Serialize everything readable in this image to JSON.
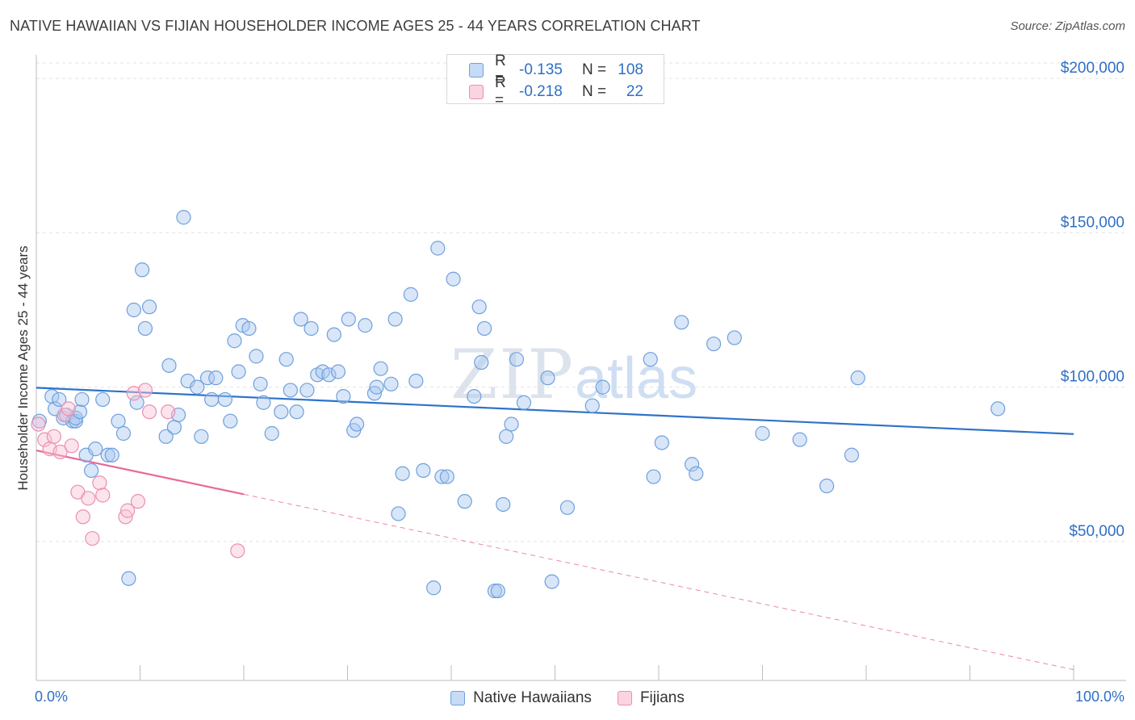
{
  "header": {
    "title": "NATIVE HAWAIIAN VS FIJIAN HOUSEHOLDER INCOME AGES 25 - 44 YEARS CORRELATION CHART",
    "source": "Source: ZipAtlas.com"
  },
  "legend_top": [
    {
      "r_label": "R =",
      "r_value": "-0.135",
      "n_label": "N =",
      "n_value": "108",
      "color": "#a8c8f0",
      "border": "#6fa0dc"
    },
    {
      "r_label": "R =",
      "r_value": "-0.218",
      "n_label": "N =",
      "n_value": "22",
      "color": "#f9c4d6",
      "border": "#ec8fb0"
    }
  ],
  "legend_bottom": [
    {
      "label": "Native Hawaiians",
      "color": "#a8c8f0",
      "border": "#6fa0dc"
    },
    {
      "label": "Fijians",
      "color": "#f9c4d6",
      "border": "#ec8fb0"
    }
  ],
  "watermark": {
    "zip": "ZIP",
    "atlas": "atlas"
  },
  "colors": {
    "blue": "#2e73c9",
    "pink": "#e8689a",
    "tick_label": "#2f6fc4"
  },
  "chart_data": {
    "type": "scatter",
    "title": "NATIVE HAWAIIAN VS FIJIAN HOUSEHOLDER INCOME AGES 25 - 44 YEARS CORRELATION CHART",
    "xlabel": "",
    "ylabel": "Householder Income Ages 25 - 44 years",
    "xlim": [
      0,
      100
    ],
    "ylim": [
      5000,
      205000
    ],
    "x_tick_labels": [
      "0.0%",
      "100.0%"
    ],
    "y_ticks": [
      50000,
      100000,
      150000,
      200000
    ],
    "y_tick_labels": [
      "$50,000",
      "$100,000",
      "$150,000",
      "$200,000"
    ],
    "grid": true,
    "series": [
      {
        "name": "Native Hawaiians",
        "points": [
          [
            0.3,
            89000
          ],
          [
            1.5,
            97000
          ],
          [
            1.8,
            93000
          ],
          [
            2.2,
            96000
          ],
          [
            2.6,
            90000
          ],
          [
            2.9,
            91000
          ],
          [
            3.5,
            89000
          ],
          [
            3.8,
            89000
          ],
          [
            3.8,
            90000
          ],
          [
            4.2,
            92000
          ],
          [
            4.4,
            96000
          ],
          [
            4.8,
            78000
          ],
          [
            5.3,
            73000
          ],
          [
            5.7,
            80000
          ],
          [
            6.4,
            96000
          ],
          [
            6.9,
            78000
          ],
          [
            7.3,
            78000
          ],
          [
            7.9,
            89000
          ],
          [
            8.4,
            85000
          ],
          [
            8.9,
            38000
          ],
          [
            9.4,
            125000
          ],
          [
            9.7,
            95000
          ],
          [
            10.2,
            138000
          ],
          [
            10.5,
            119000
          ],
          [
            10.9,
            126000
          ],
          [
            12.5,
            84000
          ],
          [
            12.8,
            107000
          ],
          [
            13.3,
            87000
          ],
          [
            13.7,
            91000
          ],
          [
            14.2,
            155000
          ],
          [
            14.6,
            102000
          ],
          [
            15.5,
            100000
          ],
          [
            15.9,
            84000
          ],
          [
            16.5,
            103000
          ],
          [
            16.9,
            96000
          ],
          [
            17.3,
            103000
          ],
          [
            18.2,
            96000
          ],
          [
            18.7,
            89000
          ],
          [
            19.1,
            115000
          ],
          [
            19.5,
            105000
          ],
          [
            19.9,
            120000
          ],
          [
            20.5,
            119000
          ],
          [
            21.2,
            110000
          ],
          [
            21.6,
            101000
          ],
          [
            21.9,
            95000
          ],
          [
            22.7,
            85000
          ],
          [
            23.6,
            92000
          ],
          [
            24.1,
            109000
          ],
          [
            24.5,
            99000
          ],
          [
            25.1,
            92000
          ],
          [
            25.5,
            122000
          ],
          [
            26.1,
            99000
          ],
          [
            26.5,
            119000
          ],
          [
            27.1,
            104000
          ],
          [
            27.6,
            105000
          ],
          [
            28.2,
            104000
          ],
          [
            28.7,
            117000
          ],
          [
            29.1,
            105000
          ],
          [
            29.6,
            97000
          ],
          [
            30.1,
            122000
          ],
          [
            30.6,
            86000
          ],
          [
            30.9,
            88000
          ],
          [
            31.7,
            120000
          ],
          [
            32.6,
            98000
          ],
          [
            32.8,
            100000
          ],
          [
            33.2,
            106000
          ],
          [
            34.2,
            101000
          ],
          [
            34.6,
            122000
          ],
          [
            34.9,
            59000
          ],
          [
            35.3,
            72000
          ],
          [
            36.1,
            130000
          ],
          [
            36.6,
            102000
          ],
          [
            37.3,
            73000
          ],
          [
            38.3,
            35000
          ],
          [
            38.7,
            145000
          ],
          [
            39.1,
            71000
          ],
          [
            39.6,
            71000
          ],
          [
            40.2,
            135000
          ],
          [
            41.3,
            63000
          ],
          [
            42.2,
            97000
          ],
          [
            42.7,
            126000
          ],
          [
            42.9,
            108000
          ],
          [
            43.2,
            119000
          ],
          [
            44.2,
            34000
          ],
          [
            44.5,
            34000
          ],
          [
            45.0,
            62000
          ],
          [
            45.3,
            84000
          ],
          [
            45.8,
            88000
          ],
          [
            46.3,
            109000
          ],
          [
            47.0,
            95000
          ],
          [
            49.3,
            103000
          ],
          [
            49.7,
            37000
          ],
          [
            51.2,
            61000
          ],
          [
            53.6,
            94000
          ],
          [
            54.6,
            100000
          ],
          [
            59.2,
            109000
          ],
          [
            59.5,
            71000
          ],
          [
            60.3,
            82000
          ],
          [
            62.2,
            121000
          ],
          [
            63.2,
            75000
          ],
          [
            63.6,
            72000
          ],
          [
            65.3,
            114000
          ],
          [
            67.3,
            116000
          ],
          [
            70.0,
            85000
          ],
          [
            73.6,
            83000
          ],
          [
            76.2,
            68000
          ],
          [
            78.6,
            78000
          ],
          [
            79.2,
            103000
          ],
          [
            92.7,
            93000
          ]
        ],
        "trend": {
          "x": [
            0,
            100
          ],
          "y": [
            99800,
            84800
          ],
          "style": "solid"
        }
      },
      {
        "name": "Fijians",
        "points": [
          [
            0.2,
            88000
          ],
          [
            0.8,
            83000
          ],
          [
            1.3,
            80000
          ],
          [
            1.7,
            84000
          ],
          [
            2.3,
            79000
          ],
          [
            2.7,
            91000
          ],
          [
            3.1,
            93000
          ],
          [
            3.4,
            81000
          ],
          [
            4.0,
            66000
          ],
          [
            4.5,
            58000
          ],
          [
            5.0,
            64000
          ],
          [
            5.4,
            51000
          ],
          [
            6.1,
            69000
          ],
          [
            6.4,
            65000
          ],
          [
            8.6,
            58000
          ],
          [
            8.8,
            60000
          ],
          [
            9.4,
            98000
          ],
          [
            9.8,
            63000
          ],
          [
            10.5,
            99000
          ],
          [
            10.9,
            92000
          ],
          [
            12.7,
            92000
          ],
          [
            19.4,
            47000
          ]
        ],
        "trend": {
          "x": [
            0,
            20
          ],
          "y": [
            79500,
            65300
          ],
          "style": "solid"
        },
        "trend_extension": {
          "x": [
            20,
            100
          ],
          "y": [
            65300,
            8500
          ],
          "style": "dashed"
        }
      }
    ]
  }
}
